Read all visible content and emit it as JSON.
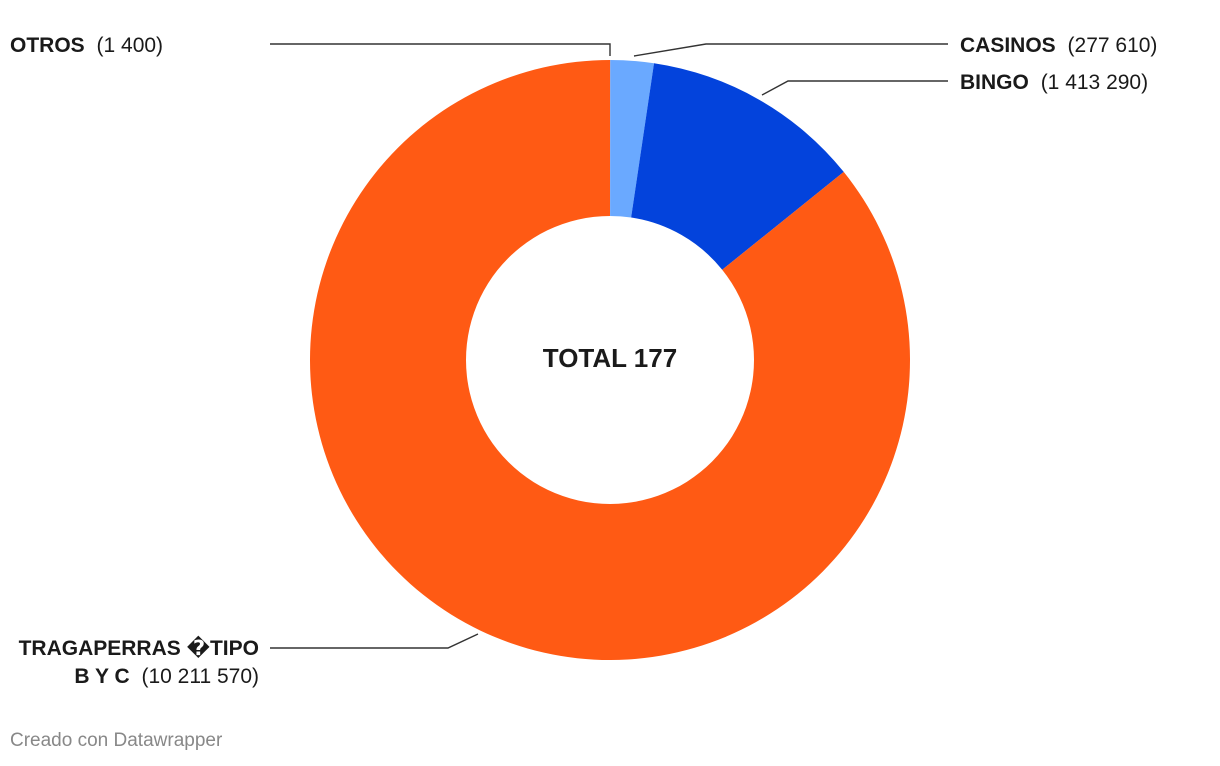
{
  "chart_data": {
    "type": "pie",
    "donut": true,
    "center_label": "TOTAL 177",
    "slices": [
      {
        "name": "OTROS",
        "value_text": "(1 400)",
        "value": 1400,
        "color": "#ff5a14"
      },
      {
        "name": "CASINOS",
        "value_text": "(277 610)",
        "value": 277610,
        "color": "#6aa9ff"
      },
      {
        "name": "BINGO",
        "value_text": "(1 413 290)",
        "value": 1413290,
        "color": "#0343dc"
      },
      {
        "name_line1": "TRAGAPERRAS �TIPO",
        "name_line2": "B Y C",
        "value_text": "(10 211 570)",
        "value": 10211570,
        "color": "#ff5a14"
      }
    ]
  },
  "footer": {
    "credit": "Creado con Datawrapper"
  }
}
